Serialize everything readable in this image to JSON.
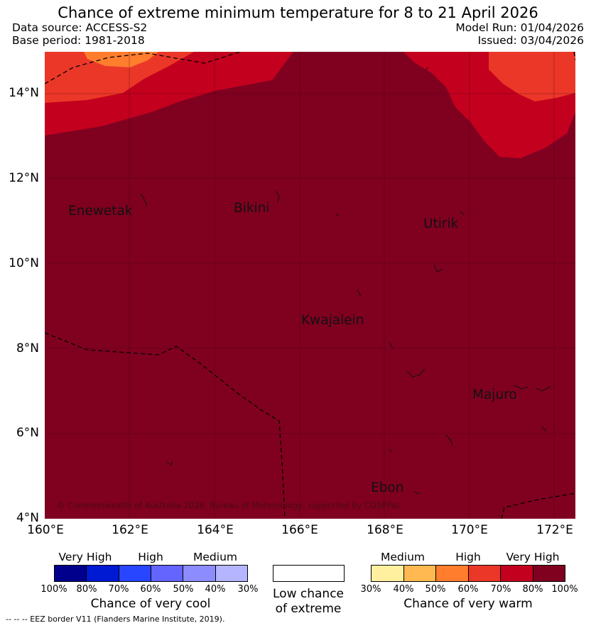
{
  "title": "Chance of extreme minimum temperature for 8 to 21 April 2026",
  "data_source": "Data source: ACCESS-S2",
  "base_period": "Base period: 1981-2018",
  "model_run": "Model Run: 01/04/2026",
  "issued": "Issued: 03/04/2026",
  "axes": {
    "lat_labels": [
      "14°N",
      "12°N",
      "10°N",
      "8°N",
      "6°N",
      "4°N"
    ],
    "lon_labels": [
      "160°E",
      "162°E",
      "164°E",
      "166°E",
      "168°E",
      "170°E",
      "172°E"
    ],
    "lat_range": [
      4,
      15
    ],
    "lon_range": [
      160,
      172.5
    ]
  },
  "islands": [
    {
      "name": "Enewetak"
    },
    {
      "name": "Bikini"
    },
    {
      "name": "Utirik"
    },
    {
      "name": "Kwajalein"
    },
    {
      "name": "Majuro"
    },
    {
      "name": "Ebon"
    }
  ],
  "copyright": "© Commonwealth of Australia 2026, Bureau of Meteorology, supported by COSPPac",
  "legend": {
    "cool": {
      "headers": [
        "Very High",
        "High",
        "Medium"
      ],
      "colors": [
        "#00008c",
        "#0019d2",
        "#2846ff",
        "#6464ff",
        "#8c8cff",
        "#b4b4ff"
      ],
      "ticks": [
        "100%",
        "80%",
        "70%",
        "60%",
        "50%",
        "40%",
        "30%"
      ],
      "title": "Chance of very cool"
    },
    "neutral": {
      "title_line1": "Low chance",
      "title_line2": "of extreme"
    },
    "warm": {
      "headers": [
        "Medium",
        "High",
        "Very High"
      ],
      "colors": [
        "#fff0a0",
        "#ffb950",
        "#ff7d2d",
        "#eb3728",
        "#c3001e",
        "#800020"
      ],
      "ticks": [
        "30%",
        "40%",
        "50%",
        "60%",
        "70%",
        "80%",
        "100%"
      ],
      "title": "Chance of very warm"
    }
  },
  "eez_note": "--  --  -- EEZ border V11 (Flanders Marine Institute, 2019)."
}
